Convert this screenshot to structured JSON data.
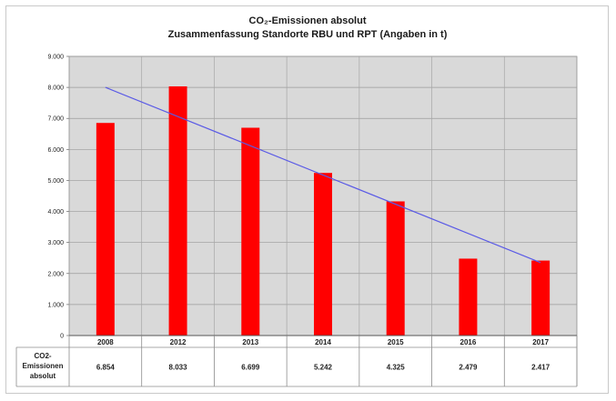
{
  "chart_data": {
    "type": "bar",
    "title_line1": "CO₂-Emissionen absolut",
    "title_line2": "Zusammenfassung Standorte RBU und RPT (Angaben in t)",
    "categories": [
      "2008",
      "2012",
      "2013",
      "2014",
      "2015",
      "2016",
      "2017"
    ],
    "values": [
      6854,
      8033,
      6699,
      5242,
      4325,
      2479,
      2417
    ],
    "value_labels": [
      "6.854",
      "8.033",
      "6.699",
      "5.242",
      "4.325",
      "2.479",
      "2.417"
    ],
    "series": [
      {
        "values": [
          6854,
          8033,
          6699,
          5242,
          4325,
          2479,
          2417
        ]
      }
    ],
    "trendline": {
      "start": 8000,
      "end": 2350
    },
    "ylim": [
      0,
      9000
    ],
    "y_ticks": [
      0,
      1000,
      2000,
      3000,
      4000,
      5000,
      6000,
      7000,
      8000,
      9000
    ],
    "y_tick_labels": [
      "0",
      "1.000",
      "2.000",
      "3.000",
      "4.000",
      "5.000",
      "6.000",
      "7.000",
      "8.000",
      "9.000"
    ],
    "table_row_header": [
      "CO2-",
      "Emissionen",
      "absolut"
    ],
    "grid": true,
    "colors": {
      "bar": "#ff0000",
      "trend": "#5a5ae6",
      "plot_bg": "#d9d9d9"
    }
  }
}
